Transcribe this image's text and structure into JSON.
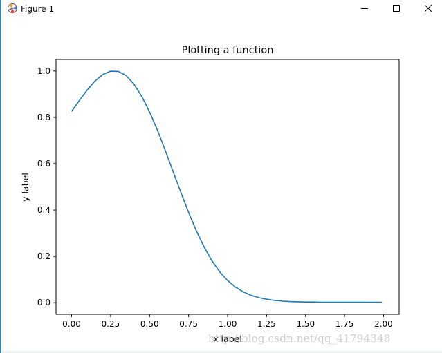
{
  "window": {
    "title": "Figure 1",
    "icon": "matplotlib-icon",
    "controls": {
      "minimize_icon": "minimize-icon",
      "maximize_icon": "maximize-icon",
      "close_icon": "close-icon"
    }
  },
  "watermark": "http://blog.csdn.net/qq_41794348",
  "chart_data": {
    "type": "line",
    "title": "Plotting a function",
    "xlabel": "x label",
    "ylabel": "y label",
    "xlim": [
      -0.1,
      2.1
    ],
    "ylim": [
      -0.05,
      1.05
    ],
    "xticks": [
      0.0,
      0.25,
      0.5,
      0.75,
      1.0,
      1.25,
      1.5,
      1.75,
      2.0
    ],
    "xtick_labels": [
      "0.00",
      "0.25",
      "0.50",
      "0.75",
      "1.00",
      "1.25",
      "1.50",
      "1.75",
      "2.00"
    ],
    "yticks": [
      0.0,
      0.2,
      0.4,
      0.6,
      0.8,
      1.0
    ],
    "ytick_labels": [
      "0.0",
      "0.2",
      "0.4",
      "0.6",
      "0.8",
      "1.0"
    ],
    "grid": false,
    "line_color": "#1f77b4",
    "series": [
      {
        "x": [
          0.0,
          0.05,
          0.1,
          0.15,
          0.2,
          0.25,
          0.3,
          0.35,
          0.4,
          0.45,
          0.5,
          0.55,
          0.6,
          0.65,
          0.7,
          0.75,
          0.8,
          0.85,
          0.9,
          0.95,
          1.0,
          1.05,
          1.1,
          1.15,
          1.2,
          1.25,
          1.3,
          1.35,
          1.4,
          1.45,
          1.5,
          1.55,
          1.6,
          1.65,
          1.7,
          1.75,
          1.8,
          1.85,
          1.9,
          1.95,
          1.99
        ],
        "y": [
          0.826,
          0.873,
          0.918,
          0.957,
          0.985,
          0.999,
          0.998,
          0.98,
          0.943,
          0.89,
          0.823,
          0.745,
          0.658,
          0.567,
          0.477,
          0.39,
          0.31,
          0.24,
          0.181,
          0.133,
          0.096,
          0.068,
          0.047,
          0.032,
          0.022,
          0.015,
          0.01,
          0.007,
          0.005,
          0.004,
          0.003,
          0.003,
          0.002,
          0.002,
          0.002,
          0.002,
          0.002,
          0.002,
          0.002,
          0.002,
          0.002
        ]
      }
    ]
  }
}
